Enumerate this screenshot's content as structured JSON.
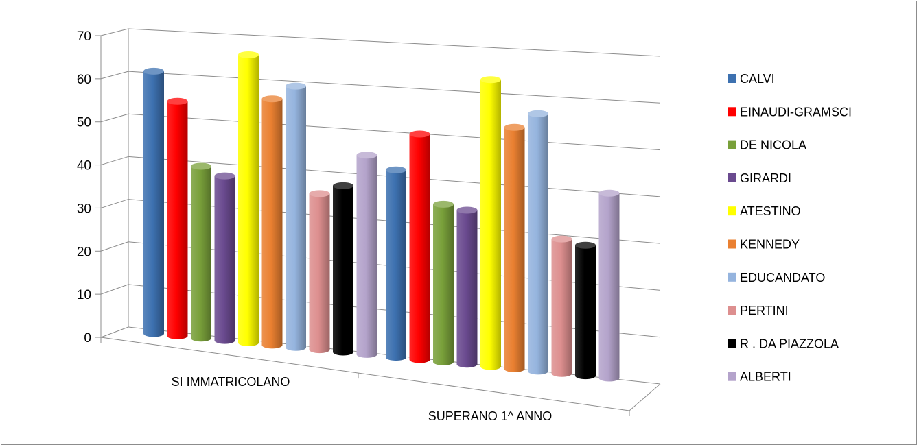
{
  "chart_data": {
    "type": "bar",
    "style": "3d-clustered-cylinder",
    "categories": [
      "SI IMMATRICOLANO",
      "SUPERANO 1^ ANNO"
    ],
    "ylim": [
      0,
      70
    ],
    "yticks": [
      "0",
      "10",
      "20",
      "30",
      "40",
      "50",
      "60",
      "70"
    ],
    "grid": true,
    "legend_position": "right",
    "series": [
      {
        "name": "CALVI",
        "color": "#3d71b0",
        "values": [
          62,
          41
        ]
      },
      {
        "name": "EINAUDI-GRAMSCI",
        "color": "#ff0000",
        "values": [
          55,
          49
        ]
      },
      {
        "name": "DE NICOLA",
        "color": "#79a03a",
        "values": [
          40,
          34
        ]
      },
      {
        "name": "GIRARDI",
        "color": "#6a4a8f",
        "values": [
          38,
          33
        ]
      },
      {
        "name": "ATESTINO",
        "color": "#ffff00",
        "values": [
          66,
          61
        ]
      },
      {
        "name": "KENNEDY",
        "color": "#ea8031",
        "values": [
          56,
          51
        ]
      },
      {
        "name": "EDUCANDATO",
        "color": "#95b4de",
        "values": [
          59,
          54
        ]
      },
      {
        "name": "PERTINI",
        "color": "#dd8f8f",
        "values": [
          35,
          28
        ]
      },
      {
        "name": "R . DA PIAZZOLA",
        "color": "#000000",
        "values": [
          37,
          27
        ]
      },
      {
        "name": "ALBERTI",
        "color": "#b4a3cb",
        "values": [
          44,
          38
        ]
      }
    ]
  }
}
